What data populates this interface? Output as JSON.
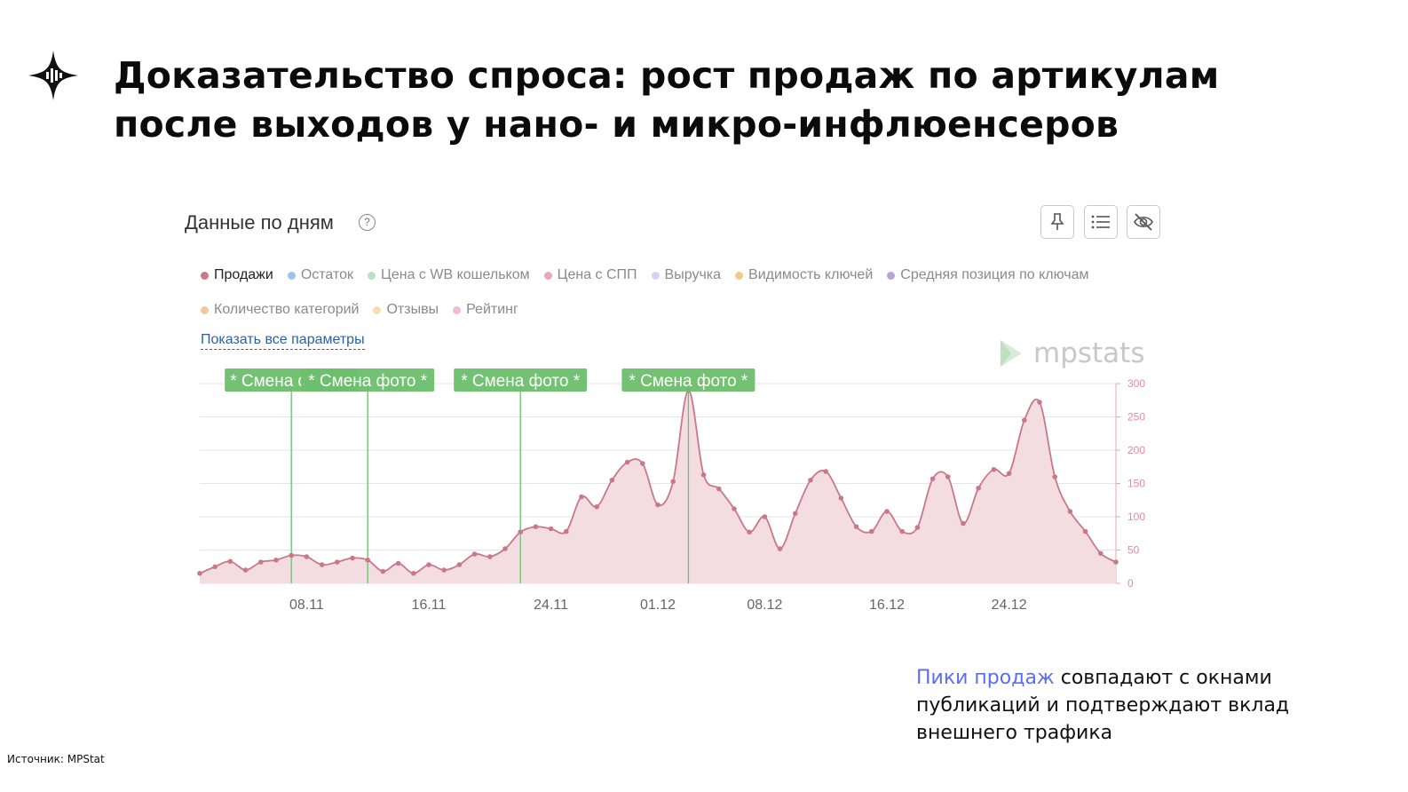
{
  "slide": {
    "title_line1": "Доказательство спроса: рост продаж по артикулам",
    "title_line2": "после выходов у нано- и микро-инфлюенсеров",
    "caption_highlight": "Пики продаж",
    "caption_rest": " совпадают с окнами публикаций и подтверждают вклад внешнего трафика",
    "source": "Источник: MPStat",
    "highlight_color": "#5b6df0"
  },
  "widget": {
    "title": "Данные по дням",
    "help": "?",
    "toolbar": [
      "pin-icon",
      "list-icon",
      "eye-off-icon"
    ],
    "legend_row1": [
      {
        "label": "Продажи",
        "color": "#c9788a",
        "active": true
      },
      {
        "label": "Остаток",
        "color": "#9ec2ee",
        "active": false
      },
      {
        "label": "Цена с WB кошельком",
        "color": "#b7e0c4",
        "active": false
      },
      {
        "label": "Цена с СПП",
        "color": "#e4a8b8",
        "active": false
      },
      {
        "label": "Выручка",
        "color": "#d9d0f6",
        "active": false
      },
      {
        "label": "Видимость ключей",
        "color": "#f4c98a",
        "active": false
      },
      {
        "label": "Средняя позиция по ключам",
        "color": "#b9a3d6",
        "active": false
      }
    ],
    "legend_row2": [
      {
        "label": "Количество категорий",
        "color": "#f2c99a",
        "active": false
      },
      {
        "label": "Отзывы",
        "color": "#f7dcb4",
        "active": false
      },
      {
        "label": "Рейтинг",
        "color": "#f3b9d8",
        "active": false
      }
    ],
    "show_all": "Показать все параметры",
    "watermark": "mpstats"
  },
  "chart_data": {
    "type": "area",
    "series": [
      {
        "name": "Продажи",
        "color": "#c9788a",
        "values": [
          15,
          25,
          33,
          20,
          32,
          35,
          42,
          40,
          28,
          32,
          38,
          35,
          18,
          30,
          15,
          28,
          20,
          28,
          44,
          40,
          52,
          77,
          85,
          82,
          78,
          130,
          115,
          155,
          182,
          180,
          118,
          153,
          290,
          163,
          142,
          112,
          77,
          100,
          52,
          105,
          155,
          168,
          128,
          85,
          78,
          108,
          78,
          84,
          157,
          160,
          90,
          143,
          171,
          165,
          245,
          272,
          160,
          108,
          78,
          45,
          32
        ]
      }
    ],
    "x_tick_labels": [
      {
        "index": 7,
        "label": "08.11"
      },
      {
        "index": 15,
        "label": "16.11"
      },
      {
        "index": 23,
        "label": "24.11"
      },
      {
        "index": 30,
        "label": "01.12"
      },
      {
        "index": 37,
        "label": "08.12"
      },
      {
        "index": 45,
        "label": "16.12"
      },
      {
        "index": 53,
        "label": "24.12"
      }
    ],
    "y_ticks": [
      0,
      50,
      100,
      150,
      200,
      250,
      300
    ],
    "ylim": [
      0,
      300
    ],
    "y_axis_side": "right",
    "grid": true,
    "annotations": [
      {
        "index": 6,
        "label": "* Смена фото *"
      },
      {
        "index": 11,
        "label": "* Смена фото *"
      },
      {
        "index": 21,
        "label": "* Смена фото *"
      },
      {
        "index": 32,
        "label": "* Смена фото *"
      }
    ],
    "first_annotation_visible_text": "* Смена ф",
    "annotation_color": "#6cbf6c"
  }
}
